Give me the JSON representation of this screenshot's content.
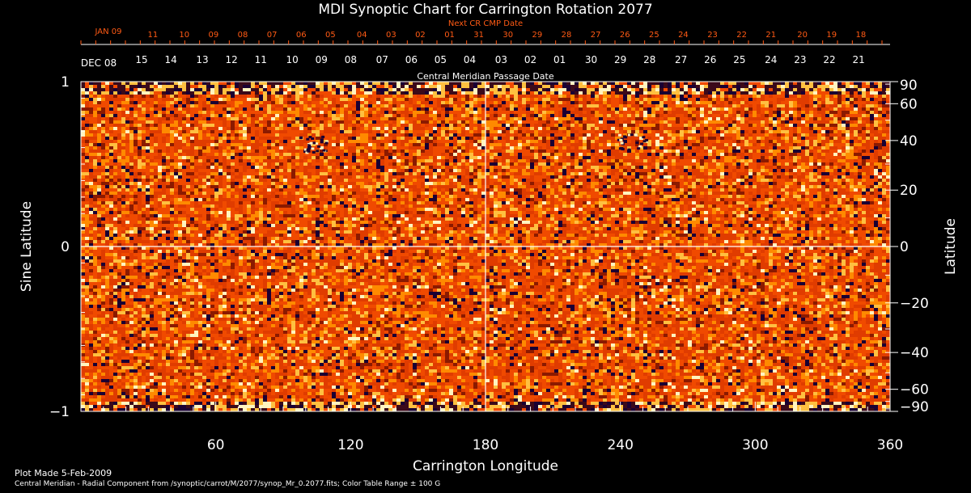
{
  "chart_data": {
    "type": "heatmap",
    "title": "MDI Synoptic Chart for Carrington Rotation 2077",
    "xlabel": "Carrington Longitude",
    "ylabel_left": "Sine Latitude",
    "ylabel_right": "Latitude",
    "xlim": [
      0,
      360
    ],
    "ylim": [
      -1,
      1
    ],
    "x_ticks": [
      60,
      120,
      180,
      240,
      300,
      360
    ],
    "y_ticks_left": [
      {
        "value": 1,
        "label": "1"
      },
      {
        "value": 0,
        "label": "0"
      },
      {
        "value": -1,
        "label": "−1"
      }
    ],
    "y_ticks_right_deg": [
      {
        "deg": 90,
        "label": "90"
      },
      {
        "deg": 60,
        "label": "60"
      },
      {
        "deg": 40,
        "label": "40"
      },
      {
        "deg": 20,
        "label": "20"
      },
      {
        "deg": 0,
        "label": "0"
      },
      {
        "deg": -20,
        "label": "−20"
      },
      {
        "deg": -40,
        "label": "−40"
      },
      {
        "deg": -60,
        "label": "−60"
      },
      {
        "deg": -90,
        "label": "−90"
      }
    ],
    "cmp_date_axis": {
      "title": "Central Meridian Passage Date",
      "start_label": "DEC 08",
      "labels": [
        {
          "lon": 27,
          "text": "15"
        },
        {
          "lon": 40,
          "text": "14"
        },
        {
          "lon": 54,
          "text": "13"
        },
        {
          "lon": 67,
          "text": "12"
        },
        {
          "lon": 80,
          "text": "11"
        },
        {
          "lon": 94,
          "text": "10"
        },
        {
          "lon": 107,
          "text": "09"
        },
        {
          "lon": 120,
          "text": "08"
        },
        {
          "lon": 134,
          "text": "07"
        },
        {
          "lon": 147,
          "text": "06"
        },
        {
          "lon": 160,
          "text": "05"
        },
        {
          "lon": 173,
          "text": "04"
        },
        {
          "lon": 187,
          "text": "03"
        },
        {
          "lon": 200,
          "text": "02"
        },
        {
          "lon": 213,
          "text": "01"
        },
        {
          "lon": 227,
          "text": "30"
        },
        {
          "lon": 240,
          "text": "29"
        },
        {
          "lon": 253,
          "text": "28"
        },
        {
          "lon": 267,
          "text": "27"
        },
        {
          "lon": 280,
          "text": "26"
        },
        {
          "lon": 293,
          "text": "25"
        },
        {
          "lon": 307,
          "text": "24"
        },
        {
          "lon": 320,
          "text": "23"
        },
        {
          "lon": 333,
          "text": "22"
        },
        {
          "lon": 346,
          "text": "21"
        }
      ]
    },
    "next_cr_cmp_date_axis": {
      "title": "Next CR CMP Date",
      "start_label": "JAN 09",
      "labels": [
        {
          "lon": 32,
          "text": "11"
        },
        {
          "lon": 46,
          "text": "10"
        },
        {
          "lon": 59,
          "text": "09"
        },
        {
          "lon": 72,
          "text": "08"
        },
        {
          "lon": 85,
          "text": "07"
        },
        {
          "lon": 98,
          "text": "06"
        },
        {
          "lon": 111,
          "text": "05"
        },
        {
          "lon": 125,
          "text": "04"
        },
        {
          "lon": 138,
          "text": "03"
        },
        {
          "lon": 151,
          "text": "02"
        },
        {
          "lon": 164,
          "text": "01"
        },
        {
          "lon": 177,
          "text": "31"
        },
        {
          "lon": 190,
          "text": "30"
        },
        {
          "lon": 203,
          "text": "29"
        },
        {
          "lon": 216,
          "text": "28"
        },
        {
          "lon": 229,
          "text": "27"
        },
        {
          "lon": 242,
          "text": "26"
        },
        {
          "lon": 255,
          "text": "25"
        },
        {
          "lon": 268,
          "text": "24"
        },
        {
          "lon": 281,
          "text": "23"
        },
        {
          "lon": 294,
          "text": "22"
        },
        {
          "lon": 307,
          "text": "21"
        },
        {
          "lon": 321,
          "text": "20"
        },
        {
          "lon": 334,
          "text": "19"
        },
        {
          "lon": 347,
          "text": "18"
        }
      ]
    },
    "colormap": [
      "#1a0033",
      "#3b0a1a",
      "#8b1a00",
      "#e03c00",
      "#ff5a00",
      "#ff8a00",
      "#ffc040",
      "#fff4c0"
    ],
    "color_table_range_gauss": 100,
    "guide_lines": {
      "lon": 180,
      "sin_lat": 0
    },
    "active_regions": [
      {
        "lon": 103,
        "sin_lat": 0.63
      },
      {
        "lon": 245,
        "sin_lat": 0.64
      }
    ]
  },
  "footer": {
    "plot_made": "Plot Made  5-Feb-2009",
    "source": "Central Meridian - Radial Component from /synoptic/carrot/M/2077/synop_Mr_0.2077.fits; Color Table Range ± 100 G"
  }
}
